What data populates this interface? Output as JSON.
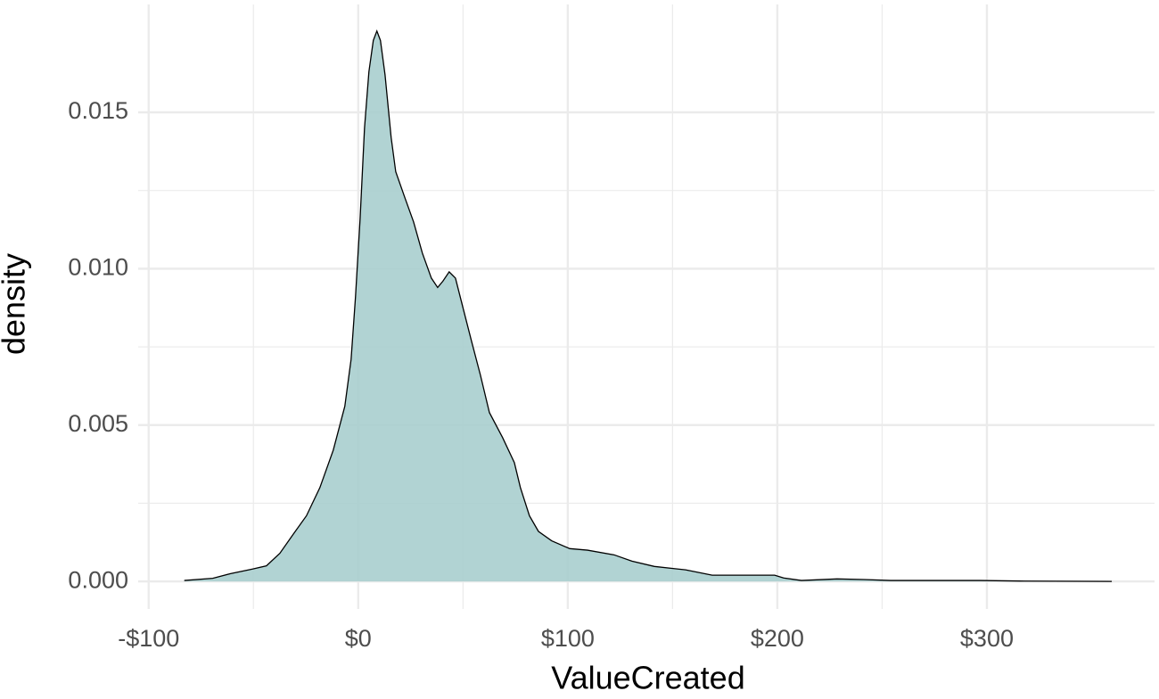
{
  "chart_data": {
    "type": "density",
    "x_label": "ValueCreated",
    "y_label": "density",
    "fill": "#a9cece",
    "line_color": "#000000",
    "x": [
      -83,
      -69.4,
      -60.9,
      -50.2,
      -43.8,
      -37.4,
      -31.1,
      -24.7,
      -18.3,
      -11.9,
      -6.4,
      -3.4,
      -1.3,
      0.9,
      3.0,
      5.1,
      7.2,
      8.9,
      10.6,
      12.8,
      15.7,
      17.9,
      22.1,
      26.4,
      30.6,
      34.9,
      37.9,
      40.4,
      43.4,
      46.4,
      49.8,
      54.0,
      58.3,
      62.6,
      68.9,
      74.5,
      77.4,
      81.7,
      86.0,
      92.3,
      100.9,
      109.4,
      122.1,
      130.6,
      141.3,
      156.2,
      168.9,
      185.9,
      198.7,
      203,
      211.5,
      228.5,
      241.3,
      254,
      296.6,
      317.9,
      359.6
    ],
    "y": [
      3e-05,
      0.0001,
      0.00025,
      0.0004,
      0.0005,
      0.0009,
      0.0015,
      0.0021,
      0.003,
      0.0042,
      0.0056,
      0.0071,
      0.0091,
      0.0116,
      0.0145,
      0.0163,
      0.0173,
      0.0176,
      0.0173,
      0.0162,
      0.0142,
      0.0131,
      0.0123,
      0.0115,
      0.0105,
      0.0097,
      0.0094,
      0.0096,
      0.0099,
      0.0097,
      0.0088,
      0.0077,
      0.0066,
      0.0054,
      0.0046,
      0.0038,
      0.003,
      0.0021,
      0.0016,
      0.0013,
      0.00105,
      0.001,
      0.00085,
      0.00065,
      0.00048,
      0.00037,
      0.0002,
      0.0002,
      0.0002,
      0.00011,
      3e-05,
      8e-05,
      6e-05,
      3e-05,
      3e-05,
      1e-05,
      0
    ],
    "xlim": [
      -105,
      380
    ],
    "ylim": [
      -0.00088,
      0.01845
    ],
    "xticks": [
      {
        "value": -100,
        "label": "-$100"
      },
      {
        "value": 0,
        "label": "$0"
      },
      {
        "value": 100,
        "label": "$100"
      },
      {
        "value": 200,
        "label": "$200"
      },
      {
        "value": 300,
        "label": "$300"
      }
    ],
    "yticks": [
      {
        "value": 0,
        "label": "0.000"
      },
      0.005,
      {
        "value": 0.01,
        "label": "0.010"
      },
      0.015
    ],
    "x_minor_ticks": [
      -50,
      50,
      150,
      250
    ],
    "y_minor_ticks": [
      0.0025,
      0.0075,
      0.0125
    ],
    "grid": true
  }
}
